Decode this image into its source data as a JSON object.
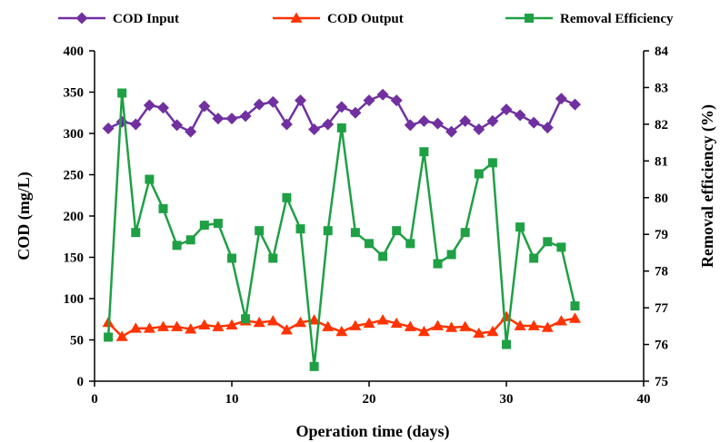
{
  "chart_data": {
    "type": "line",
    "title": "",
    "xlabel": "Operation time (days)",
    "ylabel": "COD (mg/L)",
    "y2label": "Removal efficiency (%)",
    "xlim": [
      0,
      40
    ],
    "ylim": [
      0,
      400
    ],
    "y2lim": [
      75,
      84
    ],
    "x_ticks": [
      0,
      10,
      20,
      30,
      40
    ],
    "y_ticks": [
      0,
      50,
      100,
      150,
      200,
      250,
      300,
      350,
      400
    ],
    "y2_ticks": [
      75,
      76,
      77,
      78,
      79,
      80,
      81,
      82,
      83,
      84
    ],
    "grid": false,
    "legend_position": "top",
    "x": [
      1,
      2,
      3,
      4,
      5,
      6,
      7,
      8,
      9,
      10,
      11,
      12,
      13,
      14,
      15,
      16,
      17,
      18,
      19,
      20,
      21,
      22,
      23,
      24,
      25,
      26,
      27,
      28,
      29,
      30,
      31,
      32,
      33,
      34,
      35
    ],
    "series": [
      {
        "name": "COD Input",
        "axis": "left",
        "color": "#7030a0",
        "marker": "diamond",
        "values": [
          306,
          314,
          311,
          334,
          331,
          310,
          302,
          333,
          318,
          318,
          321,
          335,
          338,
          311,
          340,
          305,
          311,
          332,
          325,
          340,
          347,
          340,
          310,
          315,
          312,
          302,
          315,
          305,
          315,
          329,
          322,
          313,
          307,
          342,
          335
        ]
      },
      {
        "name": "COD Output",
        "axis": "left",
        "color": "#ff3300",
        "marker": "triangle",
        "values": [
          71,
          54,
          64,
          64,
          66,
          66,
          63,
          68,
          66,
          68,
          73,
          71,
          73,
          62,
          71,
          74,
          66,
          60,
          67,
          70,
          74,
          70,
          66,
          60,
          67,
          65,
          66,
          58,
          60,
          78,
          67,
          67,
          65,
          73,
          76
        ]
      },
      {
        "name": "Removal Efficiency",
        "axis": "right",
        "color": "#1fa045",
        "marker": "square",
        "values": [
          76.2,
          82.85,
          79.05,
          80.5,
          79.7,
          78.7,
          78.85,
          79.25,
          79.3,
          78.35,
          76.7,
          79.1,
          78.35,
          80.0,
          79.15,
          75.4,
          79.1,
          81.9,
          79.05,
          78.75,
          78.4,
          79.1,
          78.75,
          81.25,
          78.2,
          78.45,
          79.05,
          80.65,
          80.95,
          76.0,
          79.2,
          78.35,
          78.8,
          78.65,
          77.05
        ]
      }
    ]
  }
}
